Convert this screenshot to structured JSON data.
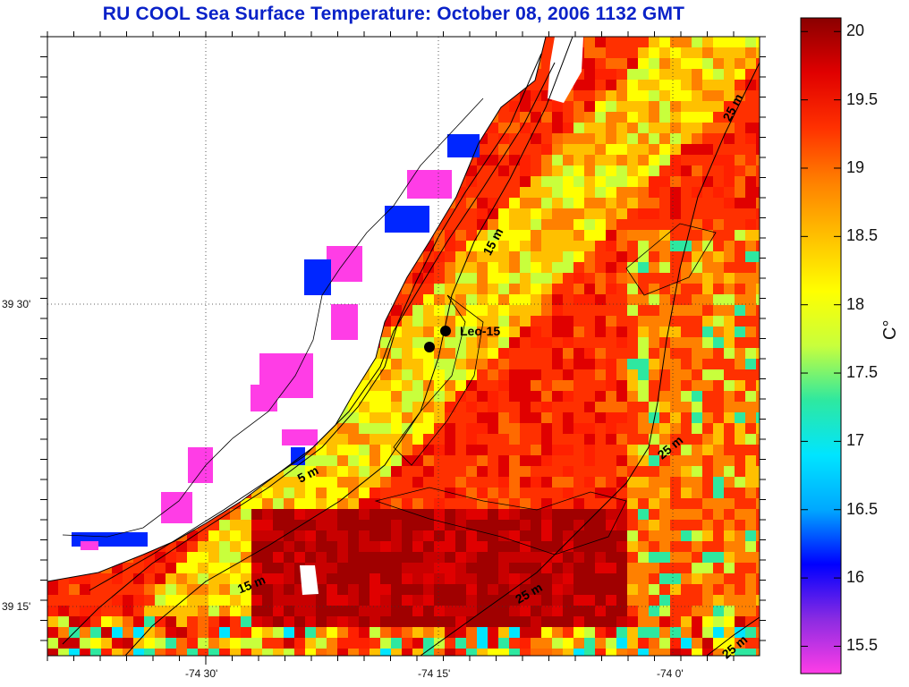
{
  "title": "RU COOL  Sea Surface Temperature:  October 08, 2006 1132 GMT",
  "x_ticks": [
    "-74 30'",
    "-74 15'",
    "-74 0'"
  ],
  "y_ticks": [
    "39 30'",
    "39 15'"
  ],
  "colorbar": {
    "labels": [
      "20",
      "19.5",
      "19",
      "18.5",
      "18",
      "17.5",
      "17",
      "16.5",
      "16",
      "15.5"
    ],
    "min": 15.3,
    "max": 20.1,
    "unit": "C°",
    "colors": [
      "#ff3de6",
      "#8a2be2",
      "#0000ff",
      "#00a8ff",
      "#00e5ff",
      "#2ee8a0",
      "#c8ff3c",
      "#ffff00",
      "#ffc000",
      "#ff8000",
      "#ff3000",
      "#e00000",
      "#8a0000"
    ]
  },
  "station": {
    "label": "Leo-15"
  },
  "contour_labels": [
    "5 m",
    "15 m",
    "15 m",
    "25 m",
    "25 m",
    "25 m",
    "25 m"
  ],
  "colors": {
    "title": "#0a22c8",
    "land": "#ffffff",
    "coastline": "#000000"
  }
}
